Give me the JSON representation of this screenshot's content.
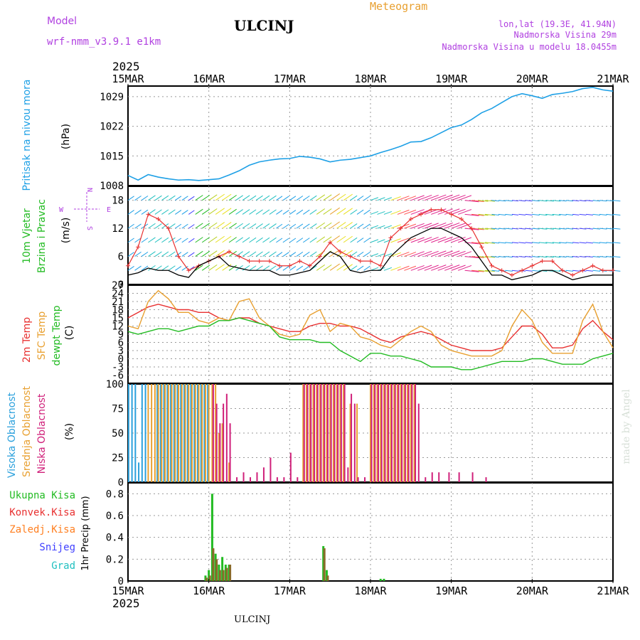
{
  "header": {
    "model_label": "Model",
    "model_name": "wrf-nmm_v3.9.1 e1km",
    "station": "ULCINJ",
    "product": "Meteogram",
    "lonlat": "lon,lat (19.3E, 41.94N)",
    "elevation": "Nadmorska Visina 29m",
    "model_elevation": "Nadmorska Visina u modelu 18.0455m",
    "footer_station": "ULCINJ",
    "watermark": "made by Angel"
  },
  "axis": {
    "year": "2025",
    "dates": [
      "15MAR",
      "16MAR",
      "17MAR",
      "18MAR",
      "19MAR",
      "20MAR",
      "21MAR"
    ]
  },
  "colors": {
    "pressure": "#1ea0e6",
    "wind_label": "#22bb22",
    "temp2m": "#e83030",
    "sfc": "#e8a030",
    "dewpt": "#22bb22",
    "high_cloud": "#2aa0dc",
    "mid_cloud": "#e8a030",
    "low_cloud": "#d0207a",
    "rain": "#22bb22",
    "conv": "#e83030",
    "freezing": "#ff7f20",
    "snow": "#4040ff",
    "hail": "#20c0c0",
    "compass": "#b040e0"
  },
  "panels": {
    "pressure": {
      "labels": [
        "Pritisak na nivou mora",
        "(hPa)"
      ]
    },
    "wind": {
      "labels": [
        "10m Vjetar",
        "Brzina i Pravac",
        "(m/s)"
      ],
      "compass": {
        "n": "N",
        "s": "S",
        "w": "W",
        "e": "E"
      }
    },
    "temp": {
      "labels": [
        "2m Temp",
        "SFC Temp",
        "dewpt Temp",
        "(C)"
      ]
    },
    "cloud": {
      "labels": [
        "Visoka Oblacnost",
        "Srednja Oblacnost",
        "Niska Oblacnost",
        "(%)"
      ]
    },
    "precip": {
      "labels": [
        "Ukupna Kisa",
        "Konvek.Kisa",
        "Zaledj.Kisa",
        "Snijeg",
        "Grad",
        "1hr Precip (mm)"
      ]
    }
  },
  "chart_data": [
    {
      "type": "line",
      "title": "",
      "ylabel": "(hPa)",
      "yticks": [
        1008,
        1015,
        1022,
        1029
      ],
      "ylim": [
        1008,
        1031.5
      ],
      "xlim": [
        0,
        144
      ],
      "grid": true,
      "series": [
        {
          "name": "Pritisak na nivou mora",
          "x": [
            0,
            3,
            6,
            9,
            12,
            15,
            18,
            21,
            24,
            27,
            30,
            33,
            36,
            39,
            42,
            45,
            48,
            51,
            54,
            57,
            60,
            63,
            66,
            69,
            72,
            75,
            78,
            81,
            84,
            87,
            90,
            93,
            96,
            99,
            102,
            105,
            108,
            111,
            114,
            117,
            120,
            123,
            126,
            129,
            132,
            135,
            138,
            141,
            144
          ],
          "y": [
            1010.4,
            1009.3,
            1010.6,
            1010.0,
            1009.6,
            1009.3,
            1009.4,
            1009.2,
            1009.4,
            1009.6,
            1010.5,
            1011.5,
            1012.8,
            1013.6,
            1014.0,
            1014.3,
            1014.4,
            1014.9,
            1014.7,
            1014.3,
            1013.6,
            1014.0,
            1014.2,
            1014.6,
            1015.0,
            1015.8,
            1016.5,
            1017.3,
            1018.3,
            1018.4,
            1019.3,
            1020.5,
            1021.7,
            1022.3,
            1023.6,
            1025.2,
            1026.2,
            1027.6,
            1029.0,
            1029.7,
            1029.2,
            1028.6,
            1029.5,
            1029.8,
            1030.2,
            1030.9,
            1031.2,
            1030.6,
            1030.3
          ]
        }
      ]
    },
    {
      "type": "line",
      "title": "",
      "ylabel": "(m/s)",
      "yticks": [
        0,
        6,
        12,
        18
      ],
      "ylim": [
        0,
        21
      ],
      "xlim": [
        0,
        144
      ],
      "grid": true,
      "series": [
        {
          "name": "gust",
          "x": [
            0,
            3,
            6,
            9,
            12,
            15,
            18,
            21,
            24,
            27,
            30,
            33,
            36,
            39,
            42,
            45,
            48,
            51,
            54,
            57,
            60,
            63,
            66,
            69,
            72,
            75,
            78,
            81,
            84,
            87,
            90,
            93,
            96,
            99,
            102,
            105,
            108,
            111,
            114,
            117,
            120,
            123,
            126,
            129,
            132,
            135,
            138,
            141,
            144
          ],
          "y": [
            4,
            8,
            15,
            14,
            12,
            6,
            3,
            4,
            5,
            6,
            7,
            6,
            5,
            5,
            5,
            4,
            4,
            5,
            4,
            6,
            9,
            7,
            6,
            5,
            5,
            4,
            10,
            12,
            14,
            15,
            16,
            16,
            15,
            14,
            12,
            8,
            4,
            3,
            2,
            3,
            4,
            5,
            5,
            3,
            2,
            3,
            4,
            3,
            3
          ]
        },
        {
          "name": "speed",
          "x": [
            0,
            3,
            6,
            9,
            12,
            15,
            18,
            21,
            24,
            27,
            30,
            33,
            36,
            39,
            42,
            45,
            48,
            51,
            54,
            57,
            60,
            63,
            66,
            69,
            72,
            75,
            78,
            81,
            84,
            87,
            90,
            93,
            96,
            99,
            102,
            105,
            108,
            111,
            114,
            117,
            120,
            123,
            126,
            129,
            132,
            135,
            138,
            141,
            144
          ],
          "y": [
            2,
            2.5,
            3.5,
            3,
            3,
            2,
            1.5,
            4,
            5,
            6,
            4,
            3.5,
            3,
            3,
            3,
            2,
            2,
            2.5,
            3,
            5,
            7,
            6,
            3,
            2.5,
            3,
            3,
            6,
            8,
            10,
            11,
            12,
            12,
            11,
            10,
            8,
            5,
            2,
            2,
            1,
            1.5,
            2,
            3,
            3,
            2,
            1,
            1.5,
            2,
            2,
            2
          ]
        }
      ]
    },
    {
      "type": "line",
      "title": "",
      "ylabel": "(C)",
      "yticks": [
        -6,
        -3,
        0,
        3,
        6,
        9,
        12,
        15,
        18,
        21,
        24,
        27
      ],
      "ylim": [
        -9,
        27
      ],
      "xlim": [
        0,
        144
      ],
      "grid": true,
      "series": [
        {
          "name": "2m Temp",
          "x": [
            0,
            3,
            6,
            9,
            12,
            15,
            18,
            21,
            24,
            27,
            30,
            33,
            36,
            39,
            42,
            45,
            48,
            51,
            54,
            57,
            60,
            63,
            66,
            69,
            72,
            75,
            78,
            81,
            84,
            87,
            90,
            93,
            96,
            99,
            102,
            105,
            108,
            111,
            114,
            117,
            120,
            123,
            126,
            129,
            132,
            135,
            138,
            141,
            144
          ],
          "y": [
            15,
            17,
            19,
            20,
            19,
            18,
            18,
            17,
            17,
            15,
            14,
            15,
            15,
            13,
            12,
            11,
            10,
            10,
            12,
            13,
            13,
            12,
            12,
            11,
            9,
            7,
            6,
            8,
            9,
            10,
            9,
            7,
            5,
            4,
            3,
            3,
            3,
            4,
            8,
            12,
            12,
            9,
            4,
            4,
            5,
            11,
            14,
            10,
            7
          ]
        },
        {
          "name": "SFC Temp",
          "x": [
            0,
            3,
            6,
            9,
            12,
            15,
            18,
            21,
            24,
            27,
            30,
            33,
            36,
            39,
            42,
            45,
            48,
            51,
            54,
            57,
            60,
            63,
            66,
            69,
            72,
            75,
            78,
            81,
            84,
            87,
            90,
            93,
            96,
            99,
            102,
            105,
            108,
            111,
            114,
            117,
            120,
            123,
            126,
            129,
            132,
            135,
            138,
            141,
            144
          ],
          "y": [
            12,
            11,
            21,
            25,
            22,
            17,
            17,
            14,
            13,
            15,
            14,
            21,
            22,
            15,
            12,
            9,
            8,
            9,
            16,
            18,
            10,
            13,
            12,
            8,
            7,
            5,
            4,
            7,
            10,
            12,
            10,
            5,
            3,
            2,
            1,
            1,
            1,
            3,
            12,
            18,
            14,
            6,
            2,
            2,
            2,
            14,
            20,
            10,
            4
          ]
        },
        {
          "name": "dewpt Temp",
          "x": [
            0,
            3,
            6,
            9,
            12,
            15,
            18,
            21,
            24,
            27,
            30,
            33,
            36,
            39,
            42,
            45,
            48,
            51,
            54,
            57,
            60,
            63,
            66,
            69,
            72,
            75,
            78,
            81,
            84,
            87,
            90,
            93,
            96,
            99,
            102,
            105,
            108,
            111,
            114,
            117,
            120,
            123,
            126,
            129,
            132,
            135,
            138,
            141,
            144
          ],
          "y": [
            10,
            9,
            10,
            11,
            11,
            10,
            11,
            12,
            12,
            14,
            14,
            15,
            14,
            13,
            12,
            8,
            7,
            7,
            7,
            6,
            6,
            3,
            1,
            -1,
            2,
            2,
            1,
            1,
            0,
            -1,
            -3,
            -3,
            -3,
            -4,
            -4,
            -3,
            -2,
            -1,
            -1,
            -1,
            0,
            0,
            -1,
            -2,
            -2,
            -2,
            0,
            1,
            2
          ]
        }
      ]
    },
    {
      "type": "bar",
      "title": "",
      "ylabel": "(%)",
      "yticks": [
        0,
        25,
        50,
        75,
        100
      ],
      "ylim": [
        0,
        100
      ],
      "xlim": [
        0,
        144
      ],
      "grid": true,
      "series": [
        {
          "name": "Visoka Oblacnost",
          "x": [
            0.5,
            1.5,
            2.5,
            3.5,
            4.5,
            5.5,
            9,
            10,
            11,
            12,
            13,
            14,
            15,
            16,
            17,
            18,
            19,
            20,
            21,
            22,
            23,
            24
          ],
          "y": [
            100,
            100,
            100,
            20,
            100,
            100,
            100,
            100,
            100,
            100,
            100,
            100,
            100,
            100,
            100,
            100,
            100,
            100,
            100,
            100,
            100,
            100
          ]
        },
        {
          "name": "Srednja Oblacnost",
          "x": [
            6,
            7,
            8,
            9,
            10,
            11,
            12,
            13,
            14,
            15,
            16,
            17,
            18,
            19,
            20,
            21,
            22,
            23,
            24,
            25,
            26,
            27,
            28,
            30,
            52,
            53,
            54,
            55,
            56,
            57,
            58,
            59,
            60,
            61,
            62,
            63,
            64,
            66,
            68,
            72,
            73,
            74,
            75,
            76,
            77,
            78,
            79,
            80,
            81,
            82,
            83,
            84,
            85
          ],
          "y": [
            100,
            100,
            100,
            100,
            100,
            100,
            100,
            100,
            100,
            100,
            100,
            100,
            100,
            100,
            100,
            100,
            100,
            100,
            100,
            100,
            100,
            50,
            60,
            20,
            100,
            100,
            100,
            100,
            100,
            100,
            100,
            100,
            100,
            100,
            100,
            100,
            100,
            80,
            80,
            100,
            100,
            100,
            100,
            100,
            100,
            100,
            100,
            100,
            100,
            100,
            100,
            100,
            100
          ]
        },
        {
          "name": "Niska Oblacnost",
          "x": [
            25,
            26,
            27,
            28,
            29,
            30,
            32,
            34,
            36,
            38,
            40,
            42,
            44,
            46,
            48,
            50,
            52,
            53,
            54,
            55,
            56,
            57,
            58,
            59,
            60,
            61,
            62,
            63,
            64,
            65,
            66,
            67,
            68,
            70,
            72,
            73,
            74,
            75,
            76,
            77,
            78,
            79,
            80,
            81,
            82,
            83,
            84,
            85,
            86,
            88,
            90,
            92,
            95,
            98,
            102,
            106
          ],
          "y": [
            100,
            80,
            60,
            80,
            90,
            60,
            5,
            10,
            5,
            10,
            15,
            25,
            5,
            5,
            30,
            5,
            100,
            100,
            100,
            100,
            100,
            100,
            100,
            100,
            100,
            100,
            100,
            100,
            100,
            15,
            90,
            80,
            5,
            5,
            100,
            100,
            100,
            100,
            100,
            100,
            100,
            100,
            100,
            100,
            100,
            100,
            100,
            100,
            80,
            5,
            10,
            10,
            10,
            10,
            10,
            5
          ]
        }
      ]
    },
    {
      "type": "bar",
      "title": "",
      "ylabel": "1hr Precip (mm)",
      "yticks": [
        0,
        0.2,
        0.4,
        0.6,
        0.8
      ],
      "ylim": [
        0,
        0.9
      ],
      "xlim": [
        0,
        144
      ],
      "grid": true,
      "series": [
        {
          "name": "Ukupna Kisa",
          "x": [
            23,
            24,
            25,
            26,
            27,
            28,
            29,
            30,
            58,
            59,
            75,
            76
          ],
          "y": [
            0.05,
            0.1,
            0.8,
            0.25,
            0.15,
            0.22,
            0.15,
            0.15,
            0.32,
            0.1,
            0.02,
            0.02
          ]
        },
        {
          "name": "Konvek.Kisa",
          "x": [
            23,
            24,
            25,
            26,
            27,
            28,
            29,
            30,
            58,
            59
          ],
          "y": [
            0.03,
            0.05,
            0.3,
            0.2,
            0.1,
            0.1,
            0.12,
            0.15,
            0.3,
            0.05
          ]
        }
      ]
    }
  ]
}
